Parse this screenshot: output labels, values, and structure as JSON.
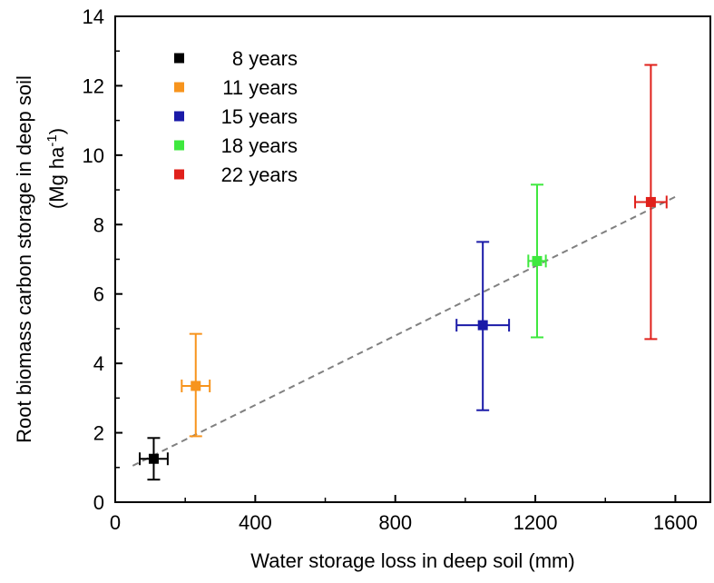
{
  "chart_data": {
    "type": "scatter",
    "xlabel": "Water storage loss in deep soil (mm)",
    "ylabel_line1": "Root biomass carbon storage in deep soil",
    "ylabel_line2_prefix": "(Mg ha",
    "ylabel_line2_sup": "-1",
    "ylabel_line2_suffix": ")",
    "xlim": [
      0,
      1700
    ],
    "ylim": [
      0,
      14
    ],
    "x_ticks": [
      0,
      400,
      800,
      1200,
      1600
    ],
    "y_ticks": [
      0,
      2,
      4,
      6,
      8,
      10,
      12,
      14
    ],
    "x_tick_labels": [
      "0",
      "400",
      "800",
      "1200",
      "1600"
    ],
    "y_tick_labels": [
      "0",
      "2",
      "4",
      "6",
      "8",
      "10",
      "12",
      "14"
    ],
    "legend_position": "top-left",
    "series": [
      {
        "name": "8 years",
        "color": "#000000",
        "x": 110,
        "y": 1.25,
        "x_err": 40,
        "y_err_low": 0.6,
        "y_err_high": 0.6
      },
      {
        "name": "11 years",
        "color": "#f7941d",
        "x": 230,
        "y": 3.35,
        "x_err": 40,
        "y_err_low": 1.45,
        "y_err_high": 1.5
      },
      {
        "name": "15 years",
        "color": "#1a1aa8",
        "x": 1050,
        "y": 5.1,
        "x_err": 75,
        "y_err_low": 2.45,
        "y_err_high": 2.4
      },
      {
        "name": "18 years",
        "color": "#3ee83e",
        "x": 1205,
        "y": 6.95,
        "x_err": 25,
        "y_err_low": 2.2,
        "y_err_high": 2.2
      },
      {
        "name": "22 years",
        "color": "#e0201b",
        "x": 1530,
        "y": 8.65,
        "x_err": 45,
        "y_err_low": 3.95,
        "y_err_high": 3.95
      }
    ],
    "fit_line": {
      "x": [
        50,
        1600
      ],
      "y": [
        1.05,
        8.8
      ],
      "color": "#808080",
      "style": "dashed"
    }
  }
}
